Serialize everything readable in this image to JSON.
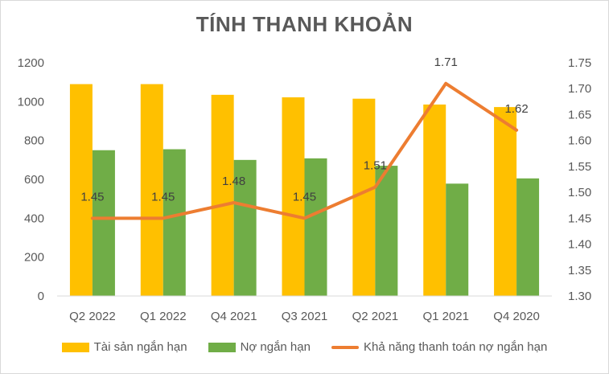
{
  "chart_data": {
    "type": "bar",
    "title": "TÍNH THANH KHOẢN",
    "categories": [
      "Q2 2022",
      "Q1 2022",
      "Q4 2021",
      "Q3 2021",
      "Q2 2021",
      "Q1 2021",
      "Q4 2020"
    ],
    "series": [
      {
        "name": "Tài sản ngắn hạn",
        "type": "bar",
        "axis": "left",
        "color": "#FFC000",
        "values": [
          1090,
          1090,
          1035,
          1022,
          1015,
          985,
          972
        ]
      },
      {
        "name": "Nợ ngắn hạn",
        "type": "bar",
        "axis": "left",
        "color": "#70AD47",
        "values": [
          750,
          755,
          700,
          708,
          670,
          578,
          605
        ]
      },
      {
        "name": "Khả năng thanh toán nợ ngắn hạn",
        "type": "line",
        "axis": "right",
        "color": "#ED7D31",
        "values": [
          1.45,
          1.45,
          1.48,
          1.45,
          1.51,
          1.71,
          1.62
        ],
        "labels": [
          "1.45",
          "1.45",
          "1.48",
          "1.45",
          "1.51",
          "1.71",
          "1.62"
        ]
      }
    ],
    "y_left": {
      "min": 0,
      "max": 1200,
      "ticks": [
        "0",
        "200",
        "400",
        "600",
        "800",
        "1000",
        "1200"
      ]
    },
    "y_right": {
      "min": 1.3,
      "max": 1.75,
      "ticks": [
        "1.30",
        "1.35",
        "1.40",
        "1.45",
        "1.50",
        "1.55",
        "1.60",
        "1.65",
        "1.70",
        "1.75"
      ]
    },
    "grid": false,
    "legend": "bottom"
  }
}
